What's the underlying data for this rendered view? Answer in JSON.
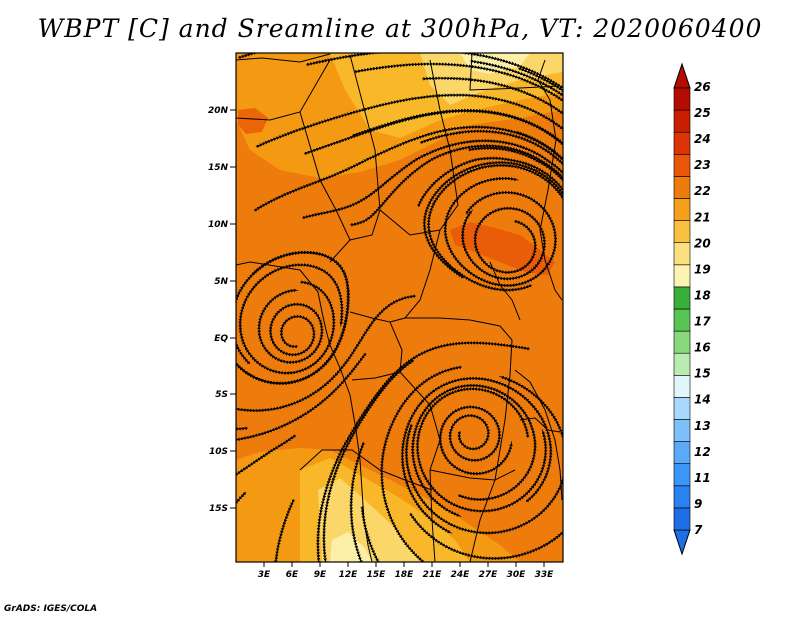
{
  "title": "WBPT [C] and Sreamline at 300hPa, VT: 2020060400",
  "credit": "GrADS: IGES/COLA",
  "map": {
    "lat_labels": [
      "20N",
      "15N",
      "10N",
      "5N",
      "EQ",
      "5S",
      "10S",
      "15S"
    ],
    "lon_labels": [
      "3E",
      "6E",
      "9E",
      "12E",
      "15E",
      "18E",
      "21E",
      "24E",
      "27E",
      "30E",
      "33E"
    ]
  },
  "colorbar": {
    "labels": [
      "7",
      "9",
      "11",
      "12",
      "13",
      "14",
      "15",
      "16",
      "17",
      "18",
      "19",
      "20",
      "21",
      "22",
      "23",
      "24",
      "25",
      "26"
    ],
    "colors": [
      "#1e6ee6",
      "#2a82f0",
      "#3c96f5",
      "#5aaaf8",
      "#7ec0fa",
      "#a8d8fb",
      "#e2f5f8",
      "#b8ecb0",
      "#88d97e",
      "#58c454",
      "#38b03a",
      "#fcf4b0",
      "#fbe080",
      "#f8c040",
      "#f4a01a",
      "#ee7c0c",
      "#e85808",
      "#dc3404",
      "#c81e02",
      "#b40c00"
    ]
  }
}
